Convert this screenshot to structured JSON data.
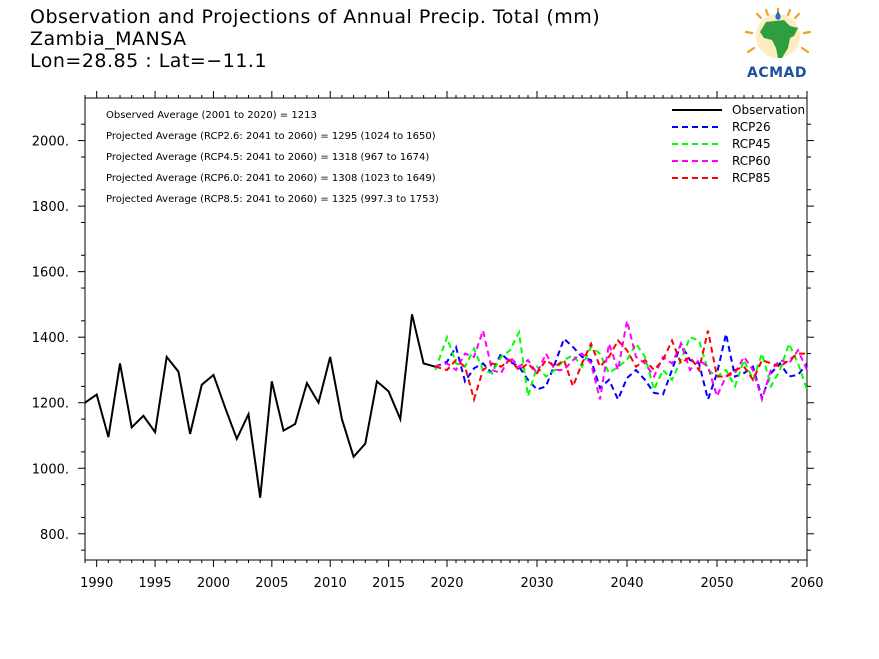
{
  "header": {
    "title_line1": "Observation and Projections of Annual Precip. Total (mm)",
    "title_line2": "Zambia_MANSA",
    "title_line3": "Lon=28.85 : Lat=−11.1"
  },
  "logo": {
    "text": "ACMAD",
    "icon": "africa-map-sun-icon"
  },
  "chart_data": {
    "type": "line",
    "title": "Observation and Projections of Annual Precip. Total (mm)",
    "xlim": [
      1989,
      2060
    ],
    "ylim": [
      720,
      2130
    ],
    "grid": false,
    "legend_position": "top-right",
    "x_ticks": [
      1990,
      1995,
      2000,
      2005,
      2010,
      2015,
      2020,
      2030,
      2040,
      2050,
      2060
    ],
    "y_ticks": [
      800,
      1000,
      1200,
      1400,
      1600,
      1800,
      2000
    ],
    "y_tick_labels": [
      "800.",
      "1000.",
      "1200.",
      "1400.",
      "1600.",
      "1800.",
      "2000."
    ],
    "annotations": [
      "Observed Average (2001 to 2020) = 1213",
      "Projected Average (RCP2.6: 2041 to 2060) = 1295 (1024 to 1650)",
      "Projected Average (RCP4.5: 2041 to 2060) = 1318 (967 to 1674)",
      "Projected Average (RCP6.0: 2041 to 2060) = 1308 (1023 to 1649)",
      "Projected Average (RCP8.5: 2041 to 2060) = 1325 (997.3 to 1753)"
    ],
    "series": [
      {
        "name": "Observation",
        "color": "#000000",
        "dash": "solid",
        "x": [
          1989,
          1990,
          1991,
          1992,
          1993,
          1994,
          1995,
          1996,
          1997,
          1998,
          1999,
          2000,
          2001,
          2002,
          2003,
          2004,
          2005,
          2006,
          2007,
          2008,
          2009,
          2010,
          2011,
          2012,
          2013,
          2014,
          2015,
          2016,
          2017,
          2018,
          2019
        ],
        "y": [
          1200,
          1225,
          1095,
          1320,
          1125,
          1160,
          1110,
          1340,
          1295,
          1105,
          1255,
          1285,
          1185,
          1090,
          1165,
          910,
          1265,
          1115,
          1135,
          1260,
          1200,
          1340,
          1150,
          1035,
          1075,
          1265,
          1235,
          1150,
          1470,
          1320,
          1310
        ]
      },
      {
        "name": "RCP26",
        "color": "#0000ff",
        "dash": "dashed",
        "x": [
          2019,
          2020,
          2021,
          2022,
          2023,
          2024,
          2025,
          2026,
          2027,
          2028,
          2029,
          2030,
          2031,
          2032,
          2033,
          2034,
          2035,
          2036,
          2037,
          2038,
          2039,
          2040,
          2041,
          2042,
          2043,
          2044,
          2045,
          2046,
          2047,
          2048,
          2049,
          2050,
          2051,
          2052,
          2053,
          2054,
          2055,
          2056,
          2057,
          2058,
          2059,
          2060
        ],
        "y": [
          1310,
          1325,
          1370,
          1265,
          1305,
          1320,
          1290,
          1350,
          1325,
          1310,
          1270,
          1240,
          1250,
          1320,
          1395,
          1370,
          1340,
          1330,
          1245,
          1270,
          1210,
          1275,
          1300,
          1270,
          1230,
          1225,
          1300,
          1380,
          1330,
          1320,
          1210,
          1290,
          1410,
          1280,
          1290,
          1310,
          1215,
          1290,
          1320,
          1280,
          1285,
          1320
        ]
      },
      {
        "name": "RCP45",
        "color": "#00ff00",
        "dash": "dashed",
        "x": [
          2019,
          2020,
          2021,
          2022,
          2023,
          2024,
          2025,
          2026,
          2027,
          2028,
          2029,
          2030,
          2031,
          2032,
          2033,
          2034,
          2035,
          2036,
          2037,
          2038,
          2039,
          2040,
          2041,
          2042,
          2043,
          2044,
          2045,
          2046,
          2047,
          2048,
          2049,
          2050,
          2051,
          2052,
          2053,
          2054,
          2055,
          2056,
          2057,
          2058,
          2059,
          2060
        ],
        "y": [
          1300,
          1400,
          1320,
          1310,
          1365,
          1300,
          1290,
          1340,
          1360,
          1415,
          1220,
          1310,
          1280,
          1300,
          1330,
          1345,
          1310,
          1370,
          1350,
          1290,
          1310,
          1330,
          1380,
          1340,
          1240,
          1300,
          1270,
          1330,
          1400,
          1390,
          1300,
          1280,
          1300,
          1250,
          1330,
          1270,
          1350,
          1250,
          1300,
          1380,
          1320,
          1240
        ]
      },
      {
        "name": "RCP60",
        "color": "#ff00ff",
        "dash": "dashed",
        "x": [
          2019,
          2020,
          2021,
          2022,
          2023,
          2024,
          2025,
          2026,
          2027,
          2028,
          2029,
          2030,
          2031,
          2032,
          2033,
          2034,
          2035,
          2036,
          2037,
          2038,
          2039,
          2040,
          2041,
          2042,
          2043,
          2044,
          2045,
          2046,
          2047,
          2048,
          2049,
          2050,
          2051,
          2052,
          2053,
          2054,
          2055,
          2056,
          2057,
          2058,
          2059,
          2060
        ],
        "y": [
          1310,
          1320,
          1300,
          1350,
          1340,
          1420,
          1300,
          1290,
          1340,
          1310,
          1330,
          1290,
          1350,
          1300,
          1300,
          1330,
          1350,
          1320,
          1210,
          1380,
          1300,
          1450,
          1340,
          1320,
          1280,
          1340,
          1320,
          1380,
          1300,
          1330,
          1310,
          1220,
          1280,
          1290,
          1340,
          1300,
          1210,
          1300,
          1330,
          1320,
          1360,
          1300
        ]
      },
      {
        "name": "RCP85",
        "color": "#ff0000",
        "dash": "dashed",
        "x": [
          2019,
          2020,
          2021,
          2022,
          2023,
          2024,
          2025,
          2026,
          2027,
          2028,
          2029,
          2030,
          2031,
          2032,
          2033,
          2034,
          2035,
          2036,
          2037,
          2038,
          2039,
          2040,
          2041,
          2042,
          2043,
          2044,
          2045,
          2046,
          2047,
          2048,
          2049,
          2050,
          2051,
          2052,
          2053,
          2054,
          2055,
          2056,
          2057,
          2058,
          2059,
          2060
        ],
        "y": [
          1310,
          1300,
          1330,
          1310,
          1210,
          1300,
          1320,
          1310,
          1330,
          1300,
          1320,
          1290,
          1330,
          1310,
          1330,
          1250,
          1320,
          1380,
          1310,
          1340,
          1390,
          1360,
          1310,
          1330,
          1300,
          1330,
          1390,
          1320,
          1340,
          1300,
          1420,
          1280,
          1280,
          1300,
          1310,
          1270,
          1330,
          1320,
          1310,
          1330,
          1350,
          1350
        ]
      }
    ]
  }
}
